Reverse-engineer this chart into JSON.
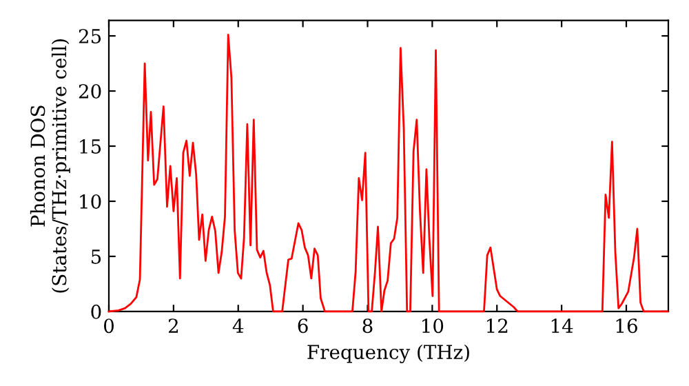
{
  "chart_data": {
    "type": "line",
    "xlabel": "Frequency (THz)",
    "ylabel": "Phonon DOS\n(States/THz·primitive cell)",
    "xlim": [
      0,
      17.3
    ],
    "ylim": [
      0,
      26.4
    ],
    "xticks": [
      0,
      2,
      4,
      6,
      8,
      10,
      12,
      14,
      16
    ],
    "yticks": [
      0,
      5,
      10,
      15,
      20,
      25
    ],
    "grid": false,
    "marker": "none",
    "line_style": "solid",
    "series": [
      {
        "color": "#ff0000",
        "x": [
          0,
          0.3,
          0.5,
          0.68,
          0.85,
          0.96,
          1.11,
          1.21,
          1.3,
          1.4,
          1.5,
          1.69,
          1.8,
          1.9,
          2.0,
          2.1,
          2.2,
          2.3,
          2.4,
          2.5,
          2.6,
          2.7,
          2.79,
          2.89,
          2.99,
          3.09,
          3.19,
          3.29,
          3.39,
          3.49,
          3.59,
          3.69,
          3.79,
          3.89,
          3.99,
          4.09,
          4.18,
          4.28,
          4.38,
          4.48,
          4.58,
          4.68,
          4.78,
          4.88,
          4.98,
          5.08,
          5.36,
          5.55,
          5.65,
          5.86,
          5.96,
          6.06,
          6.16,
          6.26,
          6.36,
          6.46,
          6.55,
          6.68,
          7.53,
          7.63,
          7.73,
          7.83,
          7.93,
          8.03,
          8.13,
          8.23,
          8.32,
          8.43,
          8.52,
          8.62,
          8.72,
          8.82,
          8.92,
          9.02,
          9.12,
          9.22,
          9.32,
          9.42,
          9.52,
          9.62,
          9.72,
          9.82,
          9.91,
          10.01,
          10.11,
          10.21,
          11.6,
          11.7,
          11.8,
          11.9,
          12.0,
          12.1,
          12.31,
          12.52,
          12.64,
          15.26,
          15.36,
          15.46,
          15.56,
          15.66,
          15.76,
          15.86,
          16.06,
          16.24,
          16.34,
          16.44,
          16.54,
          17.28
        ],
        "values": [
          0,
          0.1,
          0.3,
          0.7,
          1.3,
          2.9,
          22.5,
          13.7,
          18.1,
          11.5,
          12,
          18.6,
          9.5,
          13.2,
          9.1,
          12.1,
          3.0,
          14.4,
          15.5,
          12.3,
          15.3,
          12.4,
          6.5,
          8.8,
          4.6,
          7.4,
          8.6,
          7.3,
          3.5,
          5.4,
          8.6,
          25.1,
          21.2,
          7.4,
          3.5,
          3.0,
          6.7,
          17.0,
          6.0,
          17.4,
          5.6,
          4.9,
          5.5,
          3.5,
          2.4,
          0,
          0,
          4.7,
          4.8,
          8.0,
          7.4,
          5.8,
          5.1,
          3.0,
          5.7,
          5.1,
          1.2,
          0,
          0,
          3.6,
          12.1,
          10.1,
          14.4,
          0,
          0,
          3.6,
          7.7,
          0,
          1.9,
          2.8,
          6.2,
          6.6,
          8.5,
          23.9,
          16.6,
          0,
          0,
          14.5,
          17.4,
          9.1,
          3.5,
          12.9,
          6.6,
          1.4,
          23.7,
          0,
          0,
          5.1,
          5.8,
          3.9,
          2.0,
          1.4,
          0.9,
          0.4,
          0,
          0,
          10.6,
          8.5,
          15.4,
          5.4,
          0.3,
          0.7,
          1.8,
          4.9,
          7.5,
          0.8,
          0,
          0
        ]
      }
    ]
  }
}
